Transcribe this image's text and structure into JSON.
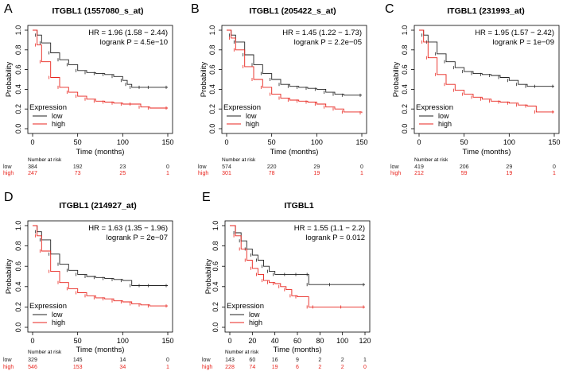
{
  "figure_colors": {
    "low": "#222222",
    "high": "#e8231c"
  },
  "chart_data": [
    {
      "type": "line",
      "panel": "A",
      "title": "ITGBL1 (1557080_s_at)",
      "xlabel": "Time (months)",
      "ylabel": "Probability",
      "xlim": [
        0,
        150
      ],
      "ylim": [
        0,
        1
      ],
      "xticks": [
        0,
        50,
        100,
        150
      ],
      "yticks": [
        0.0,
        0.2,
        0.4,
        0.6,
        0.8,
        1.0
      ],
      "ytick_labels": [
        "0.0",
        "0.2",
        "0.4",
        "0.6",
        "0.8",
        "1.0"
      ],
      "hr_text": "HR = 1.96 (1.58 − 2.44)",
      "p_text": "logrank P = 4.5e−10",
      "legend": {
        "title": "Expression",
        "low_label": "low",
        "high_label": "high"
      },
      "series": [
        {
          "name": "low",
          "x": [
            0,
            5,
            10,
            20,
            30,
            40,
            50,
            60,
            70,
            80,
            90,
            100,
            105,
            110,
            120,
            130,
            150
          ],
          "y": [
            1.0,
            0.95,
            0.87,
            0.77,
            0.7,
            0.65,
            0.59,
            0.57,
            0.56,
            0.55,
            0.53,
            0.49,
            0.45,
            0.42,
            0.42,
            0.42,
            0.42
          ]
        },
        {
          "name": "high",
          "x": [
            0,
            5,
            10,
            20,
            30,
            40,
            50,
            60,
            70,
            80,
            90,
            100,
            110,
            120,
            130,
            150
          ],
          "y": [
            1.0,
            0.85,
            0.68,
            0.52,
            0.42,
            0.37,
            0.33,
            0.3,
            0.28,
            0.27,
            0.26,
            0.25,
            0.25,
            0.22,
            0.21,
            0.21
          ]
        }
      ],
      "risk_table": {
        "header": "Number at risk",
        "ticks": [
          0,
          50,
          100,
          150
        ],
        "low": {
          "label": "low",
          "values": [
            "384",
            "192",
            "23",
            "0"
          ]
        },
        "high": {
          "label": "high",
          "values": [
            "247",
            "73",
            "25",
            "1"
          ]
        }
      }
    },
    {
      "type": "line",
      "panel": "B",
      "title": "ITGBL1 (205422_s_at)",
      "xlabel": "Time (months)",
      "ylabel": "Probability",
      "xlim": [
        0,
        150
      ],
      "ylim": [
        0,
        1
      ],
      "xticks": [
        0,
        50,
        100,
        150
      ],
      "yticks": [
        0.0,
        0.2,
        0.4,
        0.6,
        0.8,
        1.0
      ],
      "ytick_labels": [
        "0.0",
        "0.2",
        "0.4",
        "0.6",
        "0.8",
        "1.0"
      ],
      "hr_text": "HR = 1.45 (1.22 − 1.73)",
      "p_text": "logrank P = 2.2e−05",
      "legend": {
        "title": "Expression",
        "low_label": "low",
        "high_label": "high"
      },
      "series": [
        {
          "name": "low",
          "x": [
            0,
            5,
            10,
            20,
            30,
            40,
            50,
            60,
            70,
            80,
            90,
            100,
            110,
            120,
            130,
            150
          ],
          "y": [
            1.0,
            0.95,
            0.88,
            0.75,
            0.65,
            0.56,
            0.5,
            0.45,
            0.43,
            0.42,
            0.41,
            0.4,
            0.37,
            0.35,
            0.34,
            0.34
          ]
        },
        {
          "name": "high",
          "x": [
            0,
            5,
            10,
            20,
            30,
            40,
            50,
            60,
            70,
            80,
            90,
            100,
            110,
            120,
            130,
            150
          ],
          "y": [
            1.0,
            0.92,
            0.8,
            0.63,
            0.5,
            0.42,
            0.35,
            0.31,
            0.29,
            0.28,
            0.27,
            0.25,
            0.22,
            0.2,
            0.17,
            0.16
          ]
        }
      ],
      "risk_table": {
        "header": "Number at risk",
        "ticks": [
          0,
          50,
          100,
          150
        ],
        "low": {
          "label": "low",
          "values": [
            "574",
            "220",
            "29",
            "0"
          ]
        },
        "high": {
          "label": "high",
          "values": [
            "301",
            "78",
            "19",
            "1"
          ]
        }
      }
    },
    {
      "type": "line",
      "panel": "C",
      "title": "ITGBL1 (231993_at)",
      "xlabel": "Time (months)",
      "ylabel": "Probability",
      "xlim": [
        0,
        150
      ],
      "ylim": [
        0,
        1
      ],
      "xticks": [
        0,
        50,
        100,
        150
      ],
      "yticks": [
        0.0,
        0.2,
        0.4,
        0.6,
        0.8,
        1.0
      ],
      "ytick_labels": [
        "0.0",
        "0.2",
        "0.4",
        "0.6",
        "0.8",
        "1.0"
      ],
      "hr_text": "HR = 1.95 (1.57 − 2.42)",
      "p_text": "logrank P = 1e−09",
      "legend": {
        "title": "Expression",
        "low_label": "low",
        "high_label": "high"
      },
      "series": [
        {
          "name": "low",
          "x": [
            0,
            5,
            10,
            20,
            30,
            40,
            50,
            60,
            70,
            80,
            90,
            100,
            110,
            120,
            130,
            150
          ],
          "y": [
            1.0,
            0.95,
            0.88,
            0.76,
            0.68,
            0.62,
            0.58,
            0.56,
            0.55,
            0.54,
            0.52,
            0.49,
            0.45,
            0.43,
            0.43,
            0.43
          ]
        },
        {
          "name": "high",
          "x": [
            0,
            5,
            10,
            20,
            30,
            40,
            50,
            60,
            70,
            80,
            90,
            100,
            110,
            120,
            130,
            150
          ],
          "y": [
            1.0,
            0.88,
            0.72,
            0.55,
            0.45,
            0.39,
            0.35,
            0.32,
            0.3,
            0.28,
            0.27,
            0.26,
            0.24,
            0.23,
            0.17,
            0.17
          ]
        }
      ],
      "risk_table": {
        "header": "Number at risk",
        "ticks": [
          0,
          50,
          100,
          150
        ],
        "low": {
          "label": "low",
          "values": [
            "419",
            "206",
            "29",
            "0"
          ]
        },
        "high": {
          "label": "high",
          "values": [
            "212",
            "59",
            "19",
            "1"
          ]
        }
      }
    },
    {
      "type": "line",
      "panel": "D",
      "title": "ITGBL1 (214927_at)",
      "xlabel": "Time (months)",
      "ylabel": "Probability",
      "xlim": [
        0,
        150
      ],
      "ylim": [
        0,
        1
      ],
      "xticks": [
        0,
        50,
        100,
        150
      ],
      "yticks": [
        0.0,
        0.2,
        0.4,
        0.6,
        0.8,
        1.0
      ],
      "ytick_labels": [
        "0.0",
        "0.2",
        "0.4",
        "0.6",
        "0.8",
        "1.0"
      ],
      "hr_text": "HR = 1.63 (1.35 − 1.96)",
      "p_text": "logrank P = 2e−07",
      "legend": {
        "title": "Expression",
        "low_label": "low",
        "high_label": "high"
      },
      "series": [
        {
          "name": "low",
          "x": [
            0,
            5,
            10,
            20,
            30,
            40,
            50,
            60,
            70,
            80,
            90,
            100,
            110,
            120,
            130,
            150
          ],
          "y": [
            1.0,
            0.94,
            0.86,
            0.72,
            0.62,
            0.56,
            0.52,
            0.5,
            0.49,
            0.48,
            0.47,
            0.46,
            0.41,
            0.41,
            0.41,
            0.41
          ]
        },
        {
          "name": "high",
          "x": [
            0,
            5,
            10,
            20,
            30,
            40,
            50,
            60,
            70,
            80,
            90,
            100,
            110,
            120,
            130,
            150
          ],
          "y": [
            1.0,
            0.9,
            0.75,
            0.55,
            0.44,
            0.38,
            0.34,
            0.31,
            0.29,
            0.28,
            0.26,
            0.25,
            0.23,
            0.22,
            0.21,
            0.21
          ]
        }
      ],
      "risk_table": {
        "header": "Number at risk",
        "ticks": [
          0,
          50,
          100,
          150
        ],
        "low": {
          "label": "low",
          "values": [
            "329",
            "145",
            "14",
            "0"
          ]
        },
        "high": {
          "label": "high",
          "values": [
            "546",
            "153",
            "34",
            "1"
          ]
        }
      }
    },
    {
      "type": "line",
      "panel": "E",
      "title": "ITGBL1",
      "xlabel": "Time (months)",
      "ylabel": "Probability",
      "xlim": [
        0,
        120
      ],
      "ylim": [
        0,
        1
      ],
      "xticks": [
        0,
        20,
        40,
        60,
        80,
        100,
        120
      ],
      "yticks": [
        0.0,
        0.2,
        0.4,
        0.6,
        0.8,
        1.0
      ],
      "ytick_labels": [
        "0.0",
        "0.2",
        "0.4",
        "0.6",
        "0.8",
        "1.0"
      ],
      "hr_text": "HR = 1.55 (1.1 − 2.2)",
      "p_text": "logrank P = 0.012",
      "legend": {
        "title": "Expression",
        "low_label": "low",
        "high_label": "high"
      },
      "series": [
        {
          "name": "low",
          "x": [
            0,
            5,
            10,
            15,
            20,
            25,
            30,
            35,
            40,
            50,
            60,
            70,
            70,
            90,
            120
          ],
          "y": [
            1.0,
            0.93,
            0.85,
            0.77,
            0.71,
            0.66,
            0.6,
            0.55,
            0.52,
            0.52,
            0.52,
            0.52,
            0.42,
            0.42,
            0.42
          ]
        },
        {
          "name": "high",
          "x": [
            0,
            5,
            10,
            15,
            20,
            25,
            30,
            35,
            40,
            45,
            50,
            55,
            60,
            70,
            75,
            100,
            120
          ],
          "y": [
            1.0,
            0.9,
            0.77,
            0.66,
            0.58,
            0.52,
            0.46,
            0.44,
            0.43,
            0.4,
            0.37,
            0.31,
            0.3,
            0.2,
            0.2,
            0.2,
            0.2
          ]
        }
      ],
      "risk_table": {
        "header": "Number at risk",
        "ticks": [
          0,
          20,
          40,
          60,
          80,
          100,
          120
        ],
        "low": {
          "label": "low",
          "values": [
            "143",
            "60",
            "16",
            "9",
            "2",
            "2",
            "1"
          ]
        },
        "high": {
          "label": "high",
          "values": [
            "228",
            "74",
            "19",
            "6",
            "2",
            "2",
            "0"
          ]
        }
      }
    }
  ]
}
